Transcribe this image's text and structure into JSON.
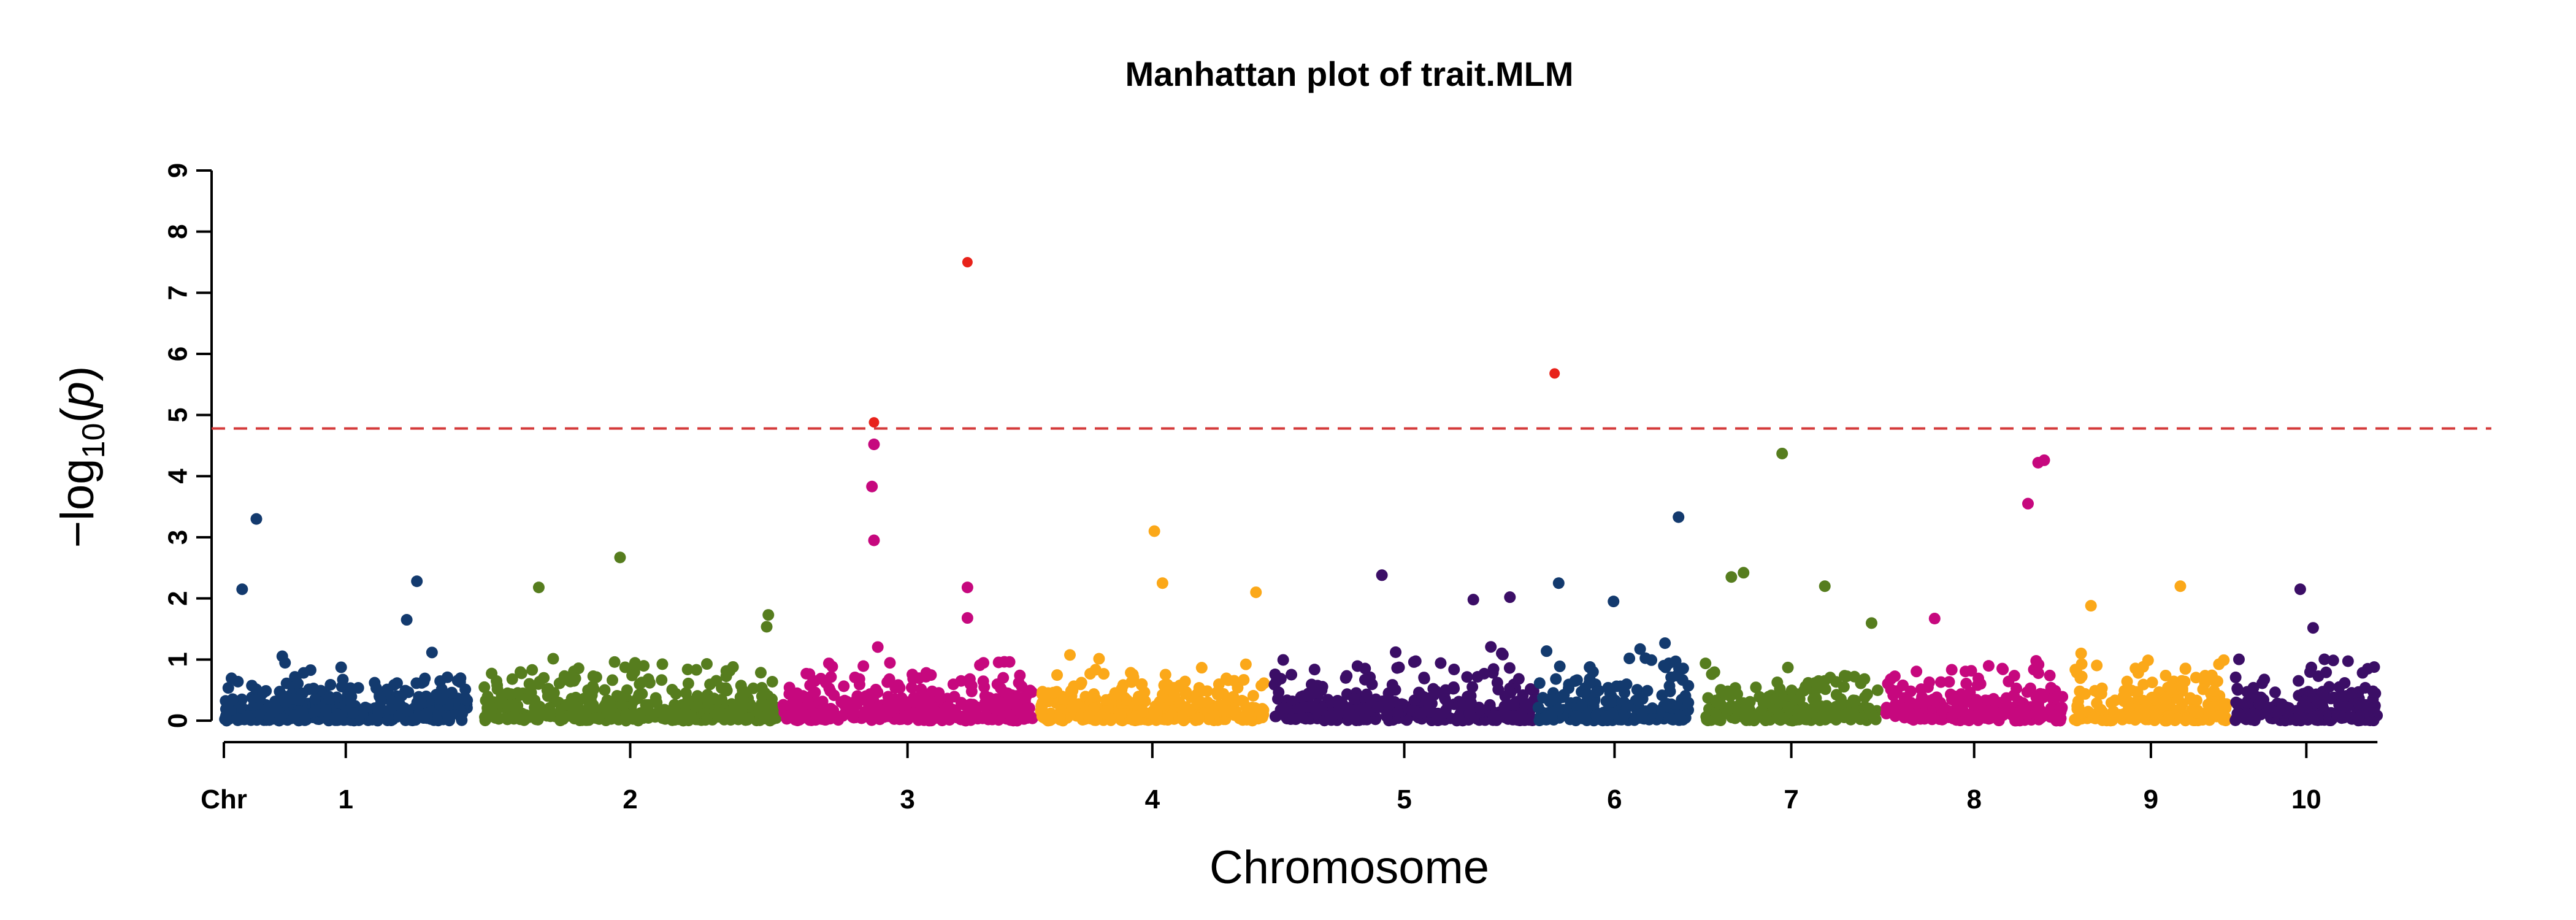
{
  "chart_data": {
    "type": "scatter",
    "title": "Manhattan plot of trait.MLM",
    "xlabel": "Chromosome",
    "ylabel": {
      "prefix": "−log",
      "sub": "10",
      "open": "(",
      "var": "p",
      "close": ")"
    },
    "x_prefix_label": "Chr",
    "ylim": [
      0,
      9
    ],
    "yticks": [
      "0",
      "1",
      "2",
      "3",
      "4",
      "5",
      "6",
      "7",
      "8",
      "9"
    ],
    "threshold": 4.78,
    "significant_color": "#e8221a",
    "grid": false,
    "legend": "none",
    "chromosomes": [
      {
        "label": "1",
        "start": 0.0,
        "end": 1.2,
        "color": "#133a6e",
        "n": 420,
        "peaks": [
          [
            0.16,
            3.3
          ],
          [
            0.09,
            2.15
          ],
          [
            0.9,
            1.65
          ],
          [
            0.95,
            2.28
          ]
        ]
      },
      {
        "label": "2",
        "start": 1.28,
        "end": 2.72,
        "color": "#567d1e",
        "n": 420,
        "peaks": [
          [
            1.55,
            2.18
          ],
          [
            1.95,
            2.67
          ],
          [
            2.68,
            1.73
          ]
        ]
      },
      {
        "label": "3",
        "start": 2.75,
        "end": 3.98,
        "color": "#c6087e",
        "n": 380,
        "peaks": [
          [
            3.2,
            4.88
          ],
          [
            3.2,
            4.52
          ],
          [
            3.19,
            3.83
          ],
          [
            3.2,
            2.95
          ],
          [
            3.66,
            2.18
          ],
          [
            3.66,
            1.68
          ],
          [
            3.66,
            7.5
          ]
        ]
      },
      {
        "label": "4",
        "start": 4.02,
        "end": 5.12,
        "color": "#fba819",
        "n": 340,
        "peaks": [
          [
            4.58,
            3.1
          ],
          [
            4.62,
            2.25
          ],
          [
            5.08,
            2.1
          ]
        ]
      },
      {
        "label": "5",
        "start": 5.17,
        "end": 6.45,
        "color": "#3b0e66",
        "n": 360,
        "peaks": [
          [
            5.7,
            2.38
          ],
          [
            6.15,
            1.98
          ],
          [
            6.33,
            2.02
          ]
        ]
      },
      {
        "label": "6",
        "start": 6.47,
        "end": 7.22,
        "color": "#133a6e",
        "n": 240,
        "peaks": [
          [
            6.55,
            5.68
          ],
          [
            6.57,
            2.25
          ],
          [
            6.84,
            1.95
          ],
          [
            7.16,
            3.33
          ]
        ]
      },
      {
        "label": "7",
        "start": 7.29,
        "end": 8.14,
        "color": "#567d1e",
        "n": 260,
        "peaks": [
          [
            7.67,
            4.37
          ],
          [
            7.48,
            2.42
          ],
          [
            7.42,
            2.35
          ],
          [
            7.88,
            2.2
          ]
        ]
      },
      {
        "label": "8",
        "start": 8.18,
        "end": 9.05,
        "color": "#c6087e",
        "n": 260,
        "peaks": [
          [
            8.93,
            4.22
          ],
          [
            8.96,
            4.26
          ],
          [
            8.88,
            3.55
          ]
        ]
      },
      {
        "label": "9",
        "start": 9.11,
        "end": 9.86,
        "color": "#fba819",
        "n": 240,
        "peaks": [
          [
            9.19,
            1.88
          ],
          [
            9.63,
            2.2
          ]
        ]
      },
      {
        "label": "10",
        "start": 9.9,
        "end": 10.6,
        "color": "#3b0e66",
        "n": 220,
        "peaks": [
          [
            10.22,
            2.15
          ]
        ]
      }
    ],
    "xlim": [
      0,
      11.2
    ]
  }
}
